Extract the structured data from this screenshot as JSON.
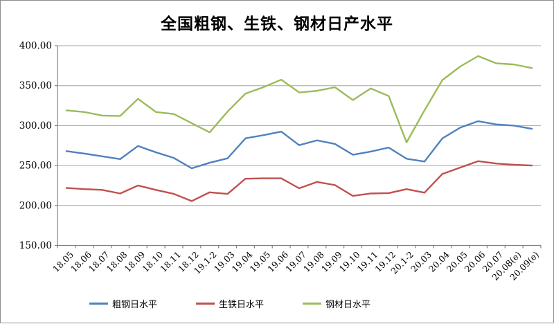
{
  "window": {
    "background": "#FFFFFF",
    "frame_border_color": "#8C8C8C"
  },
  "chart_data": {
    "type": "line",
    "title": "全国粗钢、生铁、钢材日产水平",
    "xlabel": "",
    "ylabel": "",
    "grid": "horizontal",
    "legend_position": "bottom",
    "axis_color": "#808080",
    "gridline_color": "#A6A6A6",
    "ylim": [
      150,
      400
    ],
    "yticks": [
      {
        "label": "400.00",
        "value": 400
      },
      {
        "label": "350.00",
        "value": 350
      },
      {
        "label": "300.00",
        "value": 300
      },
      {
        "label": "250.00",
        "value": 250
      },
      {
        "label": "200.00",
        "value": 200
      },
      {
        "label": "150.00",
        "value": 150
      }
    ],
    "categories": [
      "18.05",
      "18.06",
      "18.07",
      "18.08",
      "18.09",
      "18.10",
      "18.11",
      "18.12",
      "19.1-2",
      "19.03",
      "19.04",
      "19.05",
      "19.06",
      "19.07",
      "19.08",
      "19.09",
      "19.10",
      "19.11",
      "19.12",
      "20.1-2",
      "20.03",
      "20.04",
      "20.05",
      "20.06",
      "20.07",
      "20.08(e)",
      "20.09(e)"
    ],
    "series": [
      {
        "key": "crude-steel",
        "name": "粗钢日水平",
        "color": "#4F81BD",
        "values": [
          268,
          265,
          261.5,
          258,
          274.5,
          266.5,
          259.5,
          246.5,
          253.5,
          259,
          284,
          288,
          292.5,
          275.5,
          281.5,
          277,
          263.5,
          267.5,
          272.5,
          258.5,
          255,
          284,
          297.5,
          305.5,
          301.5,
          300,
          296
        ]
      },
      {
        "key": "pig-iron",
        "name": "生铁日水平",
        "color": "#C0504D",
        "values": [
          222,
          220.5,
          219.5,
          215,
          225,
          219.5,
          214.5,
          205.5,
          216.5,
          214.5,
          233.5,
          234,
          234,
          221.5,
          229.5,
          225.5,
          212,
          215,
          215.5,
          220.5,
          216,
          239.5,
          247.5,
          255.5,
          252.5,
          251,
          250
        ]
      },
      {
        "key": "steel-products",
        "name": "钢材日水平",
        "color": "#9BBB59",
        "values": [
          319,
          317,
          312.5,
          312,
          333.5,
          317,
          314.5,
          303,
          291.5,
          317.5,
          340,
          348,
          357.5,
          341.5,
          343.5,
          348,
          332,
          346.5,
          337,
          279,
          319,
          357,
          374,
          387,
          378,
          376.5,
          372
        ]
      }
    ]
  }
}
